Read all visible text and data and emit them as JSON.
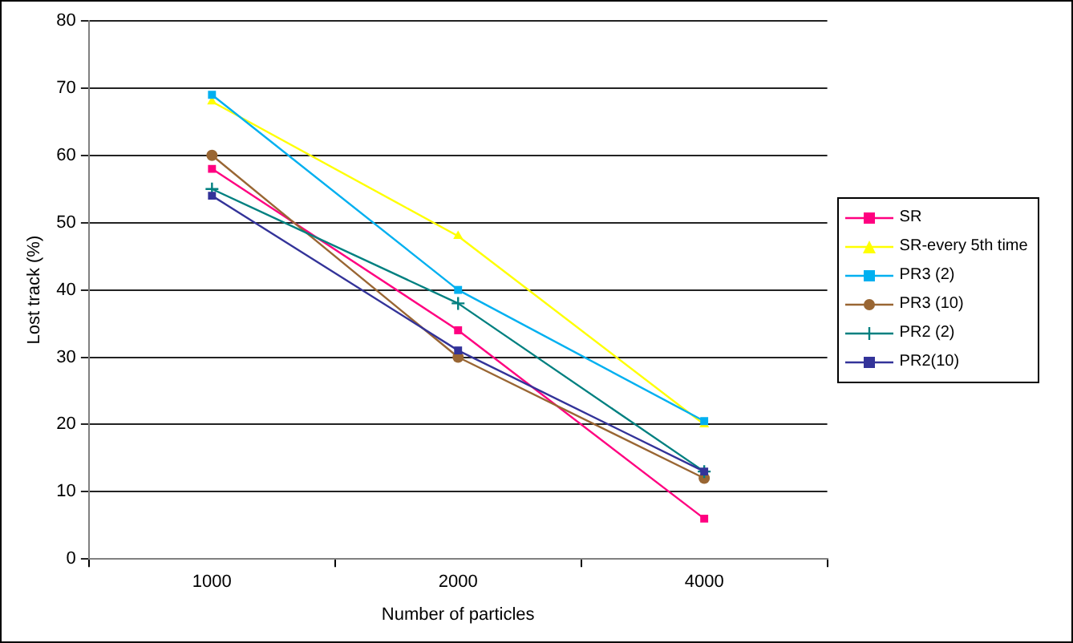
{
  "chart_data": {
    "type": "line",
    "xlabel": "Number of particles",
    "ylabel": "Lost track (%)",
    "categories": [
      "1000",
      "2000",
      "4000"
    ],
    "series": [
      {
        "name": "SR",
        "color": "#ff0080",
        "marker": "square",
        "values": [
          58,
          34,
          6
        ]
      },
      {
        "name": "SR-every 5th time",
        "color": "#ffff00",
        "marker": "triangle",
        "values": [
          68,
          48,
          20
        ]
      },
      {
        "name": "PR3 (2)",
        "color": "#00b0f0",
        "marker": "square",
        "values": [
          69,
          40,
          20.5
        ]
      },
      {
        "name": "PR3 (10)",
        "color": "#996633",
        "marker": "circle",
        "values": [
          60,
          30,
          12
        ]
      },
      {
        "name": "PR2 (2)",
        "color": "#008080",
        "marker": "cross",
        "values": [
          55,
          38,
          13
        ]
      },
      {
        "name": "PR2(10)",
        "color": "#333399",
        "marker": "square",
        "values": [
          54,
          31,
          13
        ]
      }
    ],
    "ylim": [
      0,
      80
    ],
    "yticks": [
      0,
      10,
      20,
      30,
      40,
      50,
      60,
      70,
      80
    ],
    "grid": "y",
    "legend": "right"
  }
}
